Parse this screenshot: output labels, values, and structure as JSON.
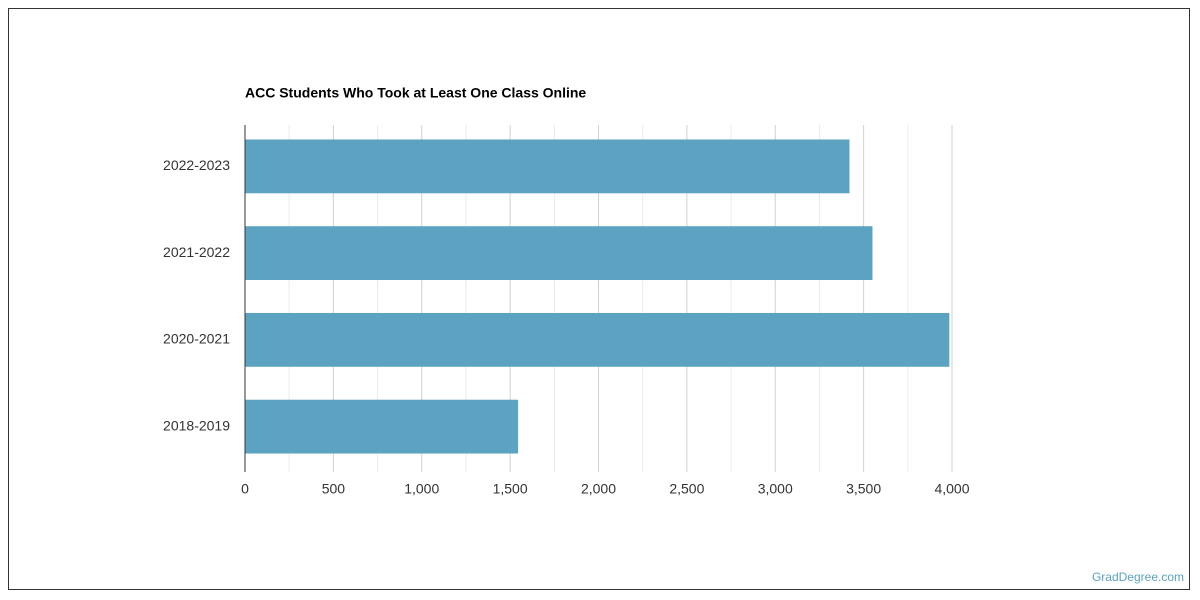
{
  "chart_data": {
    "type": "bar",
    "orientation": "horizontal",
    "title": "ACC Students Who Took at Least One Class Online",
    "categories": [
      "2022-2023",
      "2021-2022",
      "2020-2021",
      "2018-2019"
    ],
    "values": [
      3420,
      3550,
      3985,
      1545
    ],
    "color": "#5ba3c0",
    "xlim": [
      0,
      4000
    ],
    "xticks": [
      0,
      500,
      {
        "value": 1000,
        "label": "1,000"
      },
      {
        "value": 1500,
        "label": "1,500"
      },
      {
        "value": 2000,
        "label": "2,000"
      },
      {
        "value": 2500,
        "label": "2,500"
      },
      {
        "value": 3000,
        "label": "3,000"
      },
      {
        "value": 3500,
        "label": "3,500"
      },
      {
        "value": 4000,
        "label": "4,000"
      }
    ],
    "minor_xticks": [
      250,
      750,
      1250,
      1750,
      2250,
      2750,
      3250,
      3750
    ],
    "grid": true
  },
  "watermark": "GradDegree.com"
}
